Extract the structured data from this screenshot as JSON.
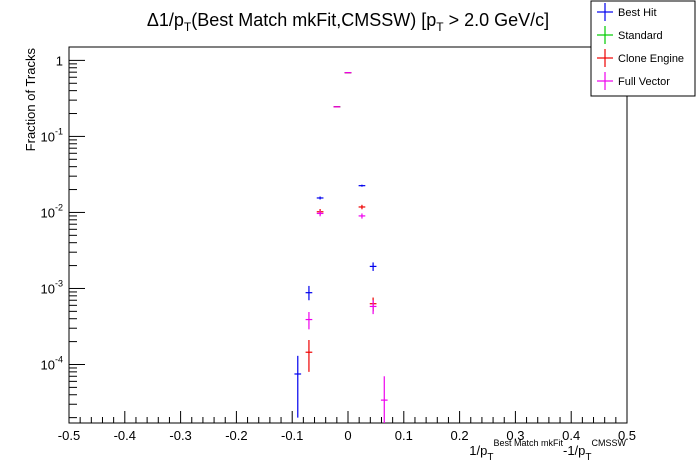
{
  "chart_data": {
    "type": "scatter",
    "title": {
      "prefix": "Δ1/p",
      "sub1": "T",
      "middle": "(Best Match mkFit,CMSSW) [p",
      "sub2": "T",
      "suffix": " > 2.0 GeV/c]"
    },
    "xlabel": {
      "main1": "1/p",
      "sub1": "T",
      "sup1": "Best Match mkFit",
      "main2": "-1/p",
      "sub2": "T",
      "sup2": "CMSSW"
    },
    "ylabel": "Fraction of Tracks",
    "xlim": [
      -0.5,
      0.5
    ],
    "ylim": [
      1.7e-05,
      1.5
    ],
    "yscale": "log",
    "grid": false,
    "legend_position": "top-right",
    "x_ticks": [
      {
        "value": -0.5,
        "label": "-0.5"
      },
      {
        "value": -0.4,
        "label": "-0.4"
      },
      {
        "value": -0.3,
        "label": "-0.3"
      },
      {
        "value": -0.2,
        "label": "-0.2"
      },
      {
        "value": -0.1,
        "label": "-0.1"
      },
      {
        "value": 0,
        "label": "0"
      },
      {
        "value": 0.1,
        "label": "0.1"
      },
      {
        "value": 0.2,
        "label": "0.2"
      },
      {
        "value": 0.3,
        "label": "0.3"
      },
      {
        "value": 0.4,
        "label": "0.4"
      },
      {
        "value": 0.5,
        "label": "0.5"
      }
    ],
    "y_ticks": [
      {
        "value": 1,
        "base": "1",
        "exp": ""
      },
      {
        "value": 0.1,
        "base": "10",
        "exp": "-1"
      },
      {
        "value": 0.01,
        "base": "10",
        "exp": "-2"
      },
      {
        "value": 0.001,
        "base": "10",
        "exp": "-3"
      },
      {
        "value": 0.0001,
        "base": "10",
        "exp": "-4"
      }
    ],
    "bin_half_width": 0.01,
    "series": [
      {
        "name": "Best Hit",
        "color": "#0000ee",
        "points": [
          {
            "x": -0.09,
            "y": 7.5e-05,
            "lo": 2e-05,
            "hi": 0.00013
          },
          {
            "x": -0.07,
            "y": 0.00088,
            "lo": 0.0007,
            "hi": 0.00108
          },
          {
            "x": -0.05,
            "y": 0.0155,
            "lo": 0.0148,
            "hi": 0.0162
          },
          {
            "x": -0.02,
            "y": 0.245,
            "lo": 0.243,
            "hi": 0.247
          },
          {
            "x": 0.0,
            "y": 0.69,
            "lo": 0.687,
            "hi": 0.693
          },
          {
            "x": 0.025,
            "y": 0.0225,
            "lo": 0.0218,
            "hi": 0.0232
          },
          {
            "x": 0.045,
            "y": 0.00195,
            "lo": 0.0017,
            "hi": 0.0022
          }
        ]
      },
      {
        "name": "Standard",
        "color": "#00cc00",
        "points": [
          {
            "x": -0.02,
            "y": 0.245,
            "lo": 0.243,
            "hi": 0.247
          },
          {
            "x": 0.0,
            "y": 0.69,
            "lo": 0.687,
            "hi": 0.693
          }
        ]
      },
      {
        "name": "Clone Engine",
        "color": "#ee0000",
        "points": [
          {
            "x": -0.07,
            "y": 0.000145,
            "lo": 8e-05,
            "hi": 0.00021
          },
          {
            "x": -0.05,
            "y": 0.0102,
            "lo": 0.0093,
            "hi": 0.0111
          },
          {
            "x": -0.02,
            "y": 0.245,
            "lo": 0.243,
            "hi": 0.247
          },
          {
            "x": 0.0,
            "y": 0.69,
            "lo": 0.687,
            "hi": 0.693
          },
          {
            "x": 0.025,
            "y": 0.0118,
            "lo": 0.011,
            "hi": 0.0126
          },
          {
            "x": 0.045,
            "y": 0.00063,
            "lo": 0.0005,
            "hi": 0.00076
          }
        ]
      },
      {
        "name": "Full Vector",
        "color": "#ee00ee",
        "points": [
          {
            "x": -0.07,
            "y": 0.00039,
            "lo": 0.00029,
            "hi": 0.00049
          },
          {
            "x": -0.05,
            "y": 0.0097,
            "lo": 0.0089,
            "hi": 0.0105
          },
          {
            "x": -0.02,
            "y": 0.245,
            "lo": 0.243,
            "hi": 0.247
          },
          {
            "x": 0.0,
            "y": 0.69,
            "lo": 0.687,
            "hi": 0.693
          },
          {
            "x": 0.025,
            "y": 0.009,
            "lo": 0.0083,
            "hi": 0.0097
          },
          {
            "x": 0.045,
            "y": 0.00058,
            "lo": 0.00046,
            "hi": 0.0007
          },
          {
            "x": 0.065,
            "y": 3.4e-05,
            "lo": 1.7e-05,
            "hi": 7e-05
          }
        ]
      }
    ]
  }
}
